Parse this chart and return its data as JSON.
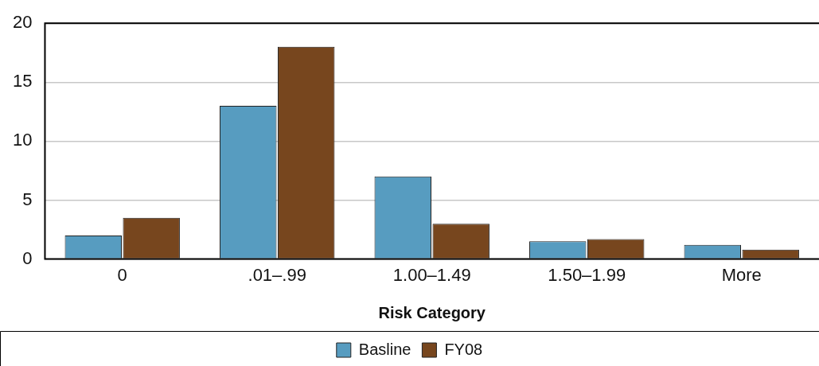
{
  "chart_data": {
    "type": "bar",
    "xlabel": "Risk Category",
    "categories": [
      "0",
      ".01–.99",
      "1.00–1.49",
      "1.50–1.99",
      "More"
    ],
    "series": [
      {
        "name": "Basline",
        "color": "#579cc0",
        "values": [
          2,
          13,
          7,
          1.5,
          1.2
        ]
      },
      {
        "name": "FY08",
        "color": "#77461e",
        "values": [
          3.5,
          18,
          3,
          1.7,
          0.8
        ]
      }
    ],
    "ylim": [
      0,
      20
    ],
    "yticks": [
      0,
      5,
      10,
      15,
      20
    ],
    "grid": "y",
    "legend": "bottom"
  }
}
